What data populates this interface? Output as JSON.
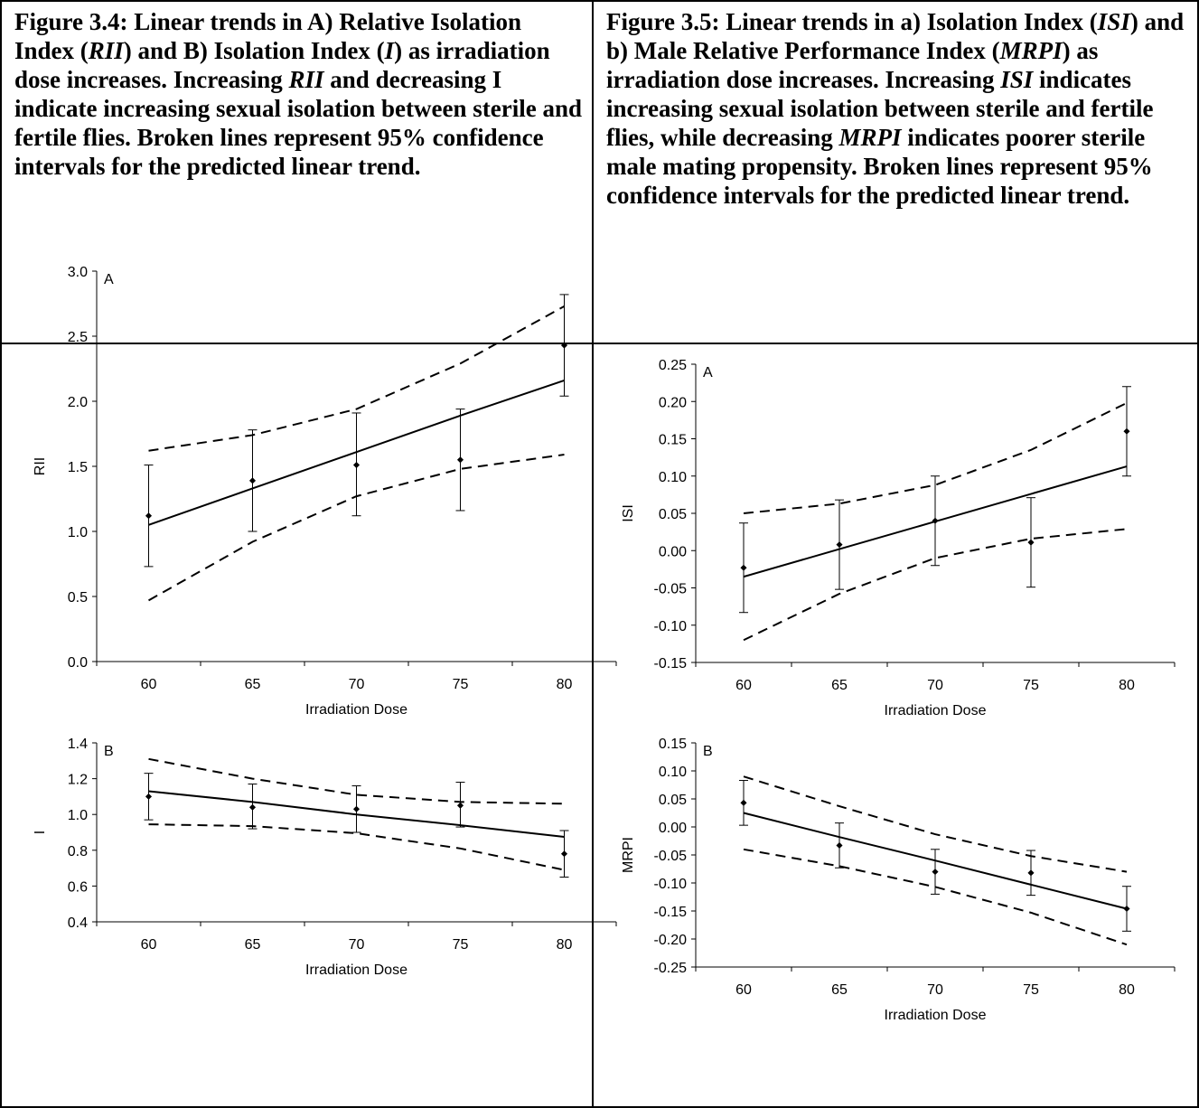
{
  "captions": [
    {
      "parts": [
        {
          "t": "Figure 3.4: Linear trends in A) Relative Isolation Index (",
          "i": false
        },
        {
          "t": "RII",
          "i": true
        },
        {
          "t": ") and B) Isolation Index (",
          "i": false
        },
        {
          "t": "I",
          "i": true
        },
        {
          "t": ") as irradiation dose increases. Increasing ",
          "i": false
        },
        {
          "t": "RII",
          "i": true
        },
        {
          "t": " and decreasing I indicate increasing sexual isolation between sterile and fertile flies. Broken lines represent 95% confidence intervals for the predicted linear trend.",
          "i": false
        }
      ]
    },
    {
      "parts": [
        {
          "t": "Figure 3.5: Linear trends in a) Isolation Index (",
          "i": false
        },
        {
          "t": "ISI",
          "i": true
        },
        {
          "t": ") and b) Male Relative Performance Index (",
          "i": false
        },
        {
          "t": "MRPI",
          "i": true
        },
        {
          "t": ") as irradiation dose increases. Increasing ",
          "i": false
        },
        {
          "t": "ISI",
          "i": true
        },
        {
          "t": " indicates increasing sexual isolation between sterile and fertile flies, while decreasing ",
          "i": false
        },
        {
          "t": "MRPI",
          "i": true
        },
        {
          "t": " indicates poorer sterile male mating propensity. Broken lines represent 95% confidence intervals for the predicted linear trend.",
          "i": false
        }
      ]
    }
  ],
  "chart_data": [
    {
      "type": "scatter",
      "panel_label": "A",
      "xlabel": "Irradiation Dose",
      "ylabel": "RII",
      "x": [
        60,
        65,
        70,
        75,
        80
      ],
      "xlim": [
        57.5,
        82.5
      ],
      "ylim": [
        0,
        3.0
      ],
      "ydecimals": 1,
      "yticks": [
        "0.0",
        "0.5",
        "1.0",
        "1.5",
        "2.0",
        "2.5",
        "3.0"
      ],
      "xticks": [
        "60",
        "65",
        "70",
        "75",
        "80"
      ],
      "points": [
        1.12,
        1.39,
        1.51,
        1.55,
        2.43
      ],
      "err_low": [
        0.73,
        1.0,
        1.12,
        1.16,
        2.04
      ],
      "err_high": [
        1.51,
        1.78,
        1.91,
        1.94,
        2.82
      ],
      "fit": [
        1.05,
        1.33,
        1.61,
        1.89,
        2.16
      ],
      "ci_upper": [
        1.62,
        1.74,
        1.94,
        2.29,
        2.73
      ],
      "ci_lower": [
        0.47,
        0.92,
        1.27,
        1.48,
        1.59
      ]
    },
    {
      "type": "scatter",
      "panel_label": "B",
      "xlabel": "Irradiation Dose",
      "ylabel": "I",
      "x": [
        60,
        65,
        70,
        75,
        80
      ],
      "xlim": [
        57.5,
        82.5
      ],
      "ylim": [
        0.4,
        1.4
      ],
      "ydecimals": 1,
      "yticks": [
        "0.4",
        "0.6",
        "0.8",
        "1.0",
        "1.2",
        "1.4"
      ],
      "xticks": [
        "60",
        "65",
        "70",
        "75",
        "80"
      ],
      "points": [
        1.1,
        1.04,
        1.03,
        1.05,
        0.78
      ],
      "err_low": [
        0.97,
        0.92,
        0.9,
        0.93,
        0.65
      ],
      "err_high": [
        1.23,
        1.17,
        1.16,
        1.18,
        0.91
      ],
      "fit": [
        1.13,
        1.07,
        1.0,
        0.94,
        0.875
      ],
      "ci_upper": [
        1.31,
        1.2,
        1.11,
        1.07,
        1.06
      ],
      "ci_lower": [
        0.945,
        0.935,
        0.895,
        0.81,
        0.69
      ]
    },
    {
      "type": "scatter",
      "panel_label": "A",
      "xlabel": "Irradiation Dose",
      "ylabel": "ISI",
      "x": [
        60,
        65,
        70,
        75,
        80
      ],
      "xlim": [
        57.5,
        82.5
      ],
      "ylim": [
        -0.15,
        0.25
      ],
      "ydecimals": 2,
      "yticks": [
        "-0.15",
        "-0.10",
        "-0.05",
        "0.00",
        "0.05",
        "0.10",
        "0.15",
        "0.20",
        "0.25"
      ],
      "xticks": [
        "60",
        "65",
        "70",
        "75",
        "80"
      ],
      "points": [
        -0.023,
        0.008,
        0.04,
        0.011,
        0.16
      ],
      "err_low": [
        -0.083,
        -0.052,
        -0.02,
        -0.049,
        0.1
      ],
      "err_high": [
        0.037,
        0.068,
        0.1,
        0.071,
        0.22
      ],
      "fit": [
        -0.035,
        0.002,
        0.039,
        0.076,
        0.113
      ],
      "ci_upper": [
        0.05,
        0.063,
        0.088,
        0.135,
        0.198
      ],
      "ci_lower": [
        -0.12,
        -0.058,
        -0.01,
        0.016,
        0.029
      ]
    },
    {
      "type": "scatter",
      "panel_label": "B",
      "xlabel": "Irradiation Dose",
      "ylabel": "MRPI",
      "x": [
        60,
        65,
        70,
        75,
        80
      ],
      "xlim": [
        57.5,
        82.5
      ],
      "ylim": [
        -0.25,
        0.15
      ],
      "ydecimals": 2,
      "yticks": [
        "-0.25",
        "-0.20",
        "-0.15",
        "-0.10",
        "-0.05",
        "0.00",
        "0.05",
        "0.10",
        "0.15"
      ],
      "xticks": [
        "60",
        "65",
        "70",
        "75",
        "80"
      ],
      "points": [
        0.043,
        -0.033,
        -0.08,
        -0.082,
        -0.146
      ],
      "err_low": [
        0.003,
        -0.073,
        -0.12,
        -0.122,
        -0.186
      ],
      "err_high": [
        0.083,
        0.007,
        -0.04,
        -0.042,
        -0.106
      ],
      "fit": [
        0.025,
        -0.018,
        -0.06,
        -0.103,
        -0.146
      ],
      "ci_upper": [
        0.09,
        0.037,
        -0.013,
        -0.052,
        -0.08
      ],
      "ci_lower": [
        -0.04,
        -0.07,
        -0.107,
        -0.153,
        -0.21
      ]
    }
  ]
}
